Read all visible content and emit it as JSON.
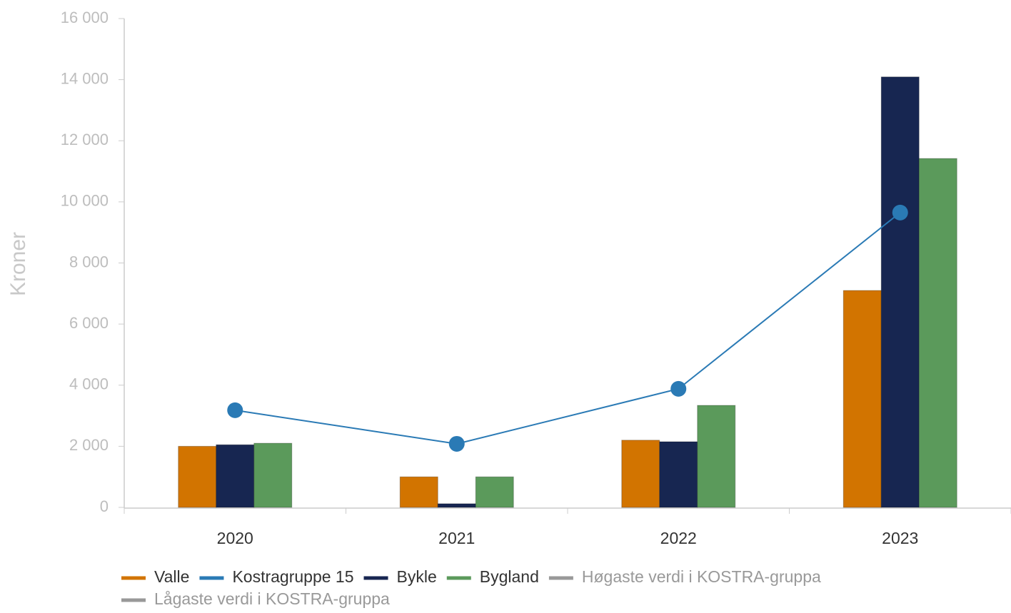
{
  "chart_data": {
    "type": "bar",
    "ylabel": "Kroner",
    "categories": [
      "2020",
      "2021",
      "2022",
      "2023"
    ],
    "ylim": [
      0,
      16000
    ],
    "yticks": [
      0,
      {
        "value": 2000,
        "label": "2 000"
      },
      {
        "value": 4000,
        "label": "4 000"
      },
      {
        "value": 6000,
        "label": "6 000"
      },
      {
        "value": 8000,
        "label": "8 000"
      },
      {
        "value": 10000,
        "label": "10 000"
      },
      {
        "value": 12000,
        "label": "12 000"
      },
      {
        "value": 14000,
        "label": "14 000"
      },
      {
        "value": 16000,
        "label": "16 000"
      }
    ],
    "series": [
      {
        "name": "Valle",
        "type": "bar",
        "color": "#d27400",
        "values": [
          2000,
          1000,
          2200,
          7100
        ]
      },
      {
        "name": "Kostragruppe 15",
        "type": "line",
        "color": "#2a7ab5",
        "values": [
          3180,
          2080,
          3880,
          9650
        ]
      },
      {
        "name": "Bykle",
        "type": "bar",
        "color": "#172651",
        "values": [
          2050,
          120,
          2150,
          14090
        ]
      },
      {
        "name": "Bygland",
        "type": "bar",
        "color": "#5b9a5b",
        "values": [
          2100,
          1000,
          3340,
          11420
        ]
      },
      {
        "name": "Høgaste verdi i KOSTRA-gruppa",
        "type": "line",
        "color": "#999999",
        "values": [
          null,
          null,
          null,
          null
        ]
      },
      {
        "name": "Lågaste verdi i KOSTRA-gruppa",
        "type": "line",
        "color": "#999999",
        "values": [
          null,
          null,
          null,
          null
        ]
      }
    ]
  }
}
